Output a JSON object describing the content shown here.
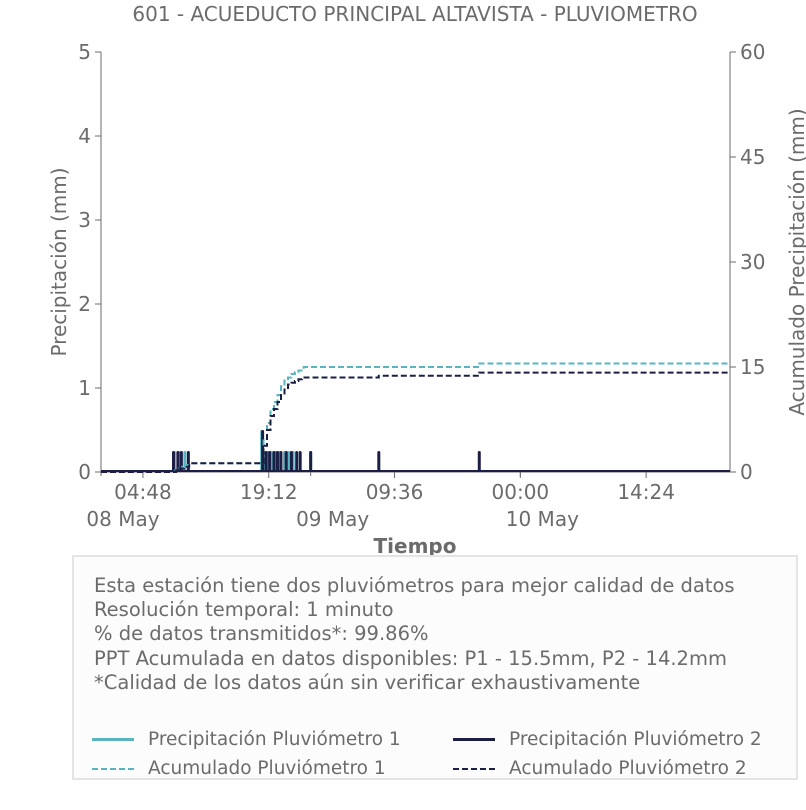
{
  "chart_data": {
    "type": "bar",
    "title": "601 - ACUEDUCTO PRINCIPAL ALTAVISTA - PLUVIOMETRO",
    "xlabel": "Tiempo",
    "ylabel": "Precipitación (mm)",
    "y2label": "Acumulado Precipitación (mm)",
    "ylim": [
      0,
      5
    ],
    "y2lim": [
      0,
      60
    ],
    "yticks": [
      "0",
      "1",
      "2",
      "3",
      "4",
      "5"
    ],
    "y2ticks": [
      "0",
      "15",
      "30",
      "45",
      "60"
    ],
    "xlim_hours": [
      0,
      72
    ],
    "xticks": [
      {
        "hour": 4.8,
        "label": "04:48"
      },
      {
        "hour": 19.2,
        "label": "19:12"
      },
      {
        "hour": 33.6,
        "label": "09:36"
      },
      {
        "hour": 48.0,
        "label": "00:00"
      },
      {
        "hour": 62.4,
        "label": "14:24"
      }
    ],
    "date_labels": [
      {
        "hour": 0,
        "label": "08 May"
      },
      {
        "hour": 24,
        "label": "09 May"
      },
      {
        "hour": 48,
        "label": "10 May"
      }
    ],
    "grid": false,
    "colors": {
      "p1": "#5ab4c0",
      "p2": "#1c1f45",
      "text": "#6b6b6b"
    },
    "series": [
      {
        "name": "Precipitación Pluviómetro 1",
        "kind": "bar",
        "x_hours": [
          8.4,
          8.9,
          9.6,
          18.4,
          18.7,
          19.1,
          19.5,
          20.0,
          20.4,
          21.0,
          21.5,
          22.0,
          24.0
        ],
        "values": [
          0.25,
          0.25,
          0.25,
          0.5,
          0.25,
          0.25,
          0.25,
          0.25,
          0.25,
          0.25,
          0.25,
          0.25,
          0.25
        ]
      },
      {
        "name": "Precipitación Pluviómetro 2",
        "kind": "bar",
        "x_hours": [
          8.3,
          8.8,
          9.2,
          10.0,
          18.5,
          18.9,
          19.3,
          19.8,
          20.2,
          20.6,
          21.2,
          21.8,
          22.4,
          22.8,
          24.0,
          31.8,
          43.3
        ],
        "values": [
          0.25,
          0.25,
          0.25,
          0.25,
          0.5,
          0.25,
          0.25,
          0.25,
          0.25,
          0.25,
          0.25,
          0.25,
          0.25,
          0.25,
          0.25,
          0.25,
          0.25
        ]
      },
      {
        "name": "Acumulado Pluviómetro 1",
        "kind": "cumulative",
        "x_hours": [
          0,
          8.3,
          8.5,
          8.9,
          9.3,
          9.8,
          10.1,
          18.4,
          18.6,
          19.0,
          19.4,
          19.8,
          20.2,
          20.6,
          21.0,
          21.4,
          21.8,
          22.2,
          22.6,
          23.2,
          31.8,
          43.3,
          72
        ],
        "values": [
          0,
          0,
          0.25,
          0.5,
          0.75,
          1.0,
          1.25,
          1.25,
          4.75,
          7.0,
          9.0,
          10.0,
          11.0,
          12.25,
          13.25,
          13.5,
          14.0,
          14.25,
          14.5,
          15.0,
          15.0,
          15.5,
          15.5
        ]
      },
      {
        "name": "Acumulado Pluviómetro 2",
        "kind": "cumulative",
        "x_hours": [
          0,
          8.3,
          8.6,
          9.0,
          9.5,
          10.1,
          18.4,
          18.6,
          19.0,
          19.4,
          19.8,
          20.2,
          20.6,
          21.0,
          21.4,
          21.8,
          22.2,
          22.6,
          23.0,
          31.8,
          43.3,
          72
        ],
        "values": [
          0,
          0,
          0.25,
          0.5,
          0.75,
          1.25,
          1.25,
          3.75,
          6.0,
          8.0,
          9.0,
          10.0,
          11.0,
          12.0,
          12.5,
          12.75,
          13.0,
          13.25,
          13.5,
          13.75,
          14.2,
          14.2
        ]
      }
    ]
  },
  "info": {
    "lines": [
      "Esta estación tiene dos pluviómetros para mejor calidad de datos",
      "Resolución temporal: 1 minuto",
      "% de datos transmitidos*: 99.86%",
      "PPT Acumulada en datos disponibles: P1 - 15.5mm, P2 - 14.2mm",
      "*Calidad de los datos aún sin verificar exhaustivamente"
    ]
  },
  "legend": [
    {
      "label": "Precipitación Pluviómetro 1",
      "color": "#5ab4c0",
      "style": "solid"
    },
    {
      "label": "Precipitación Pluviómetro 2",
      "color": "#1c1f45",
      "style": "solid"
    },
    {
      "label": "Acumulado Pluviómetro 1",
      "color": "#5ab4c0",
      "style": "dashed"
    },
    {
      "label": "Acumulado Pluviómetro 2",
      "color": "#1c1f45",
      "style": "dashed"
    }
  ]
}
